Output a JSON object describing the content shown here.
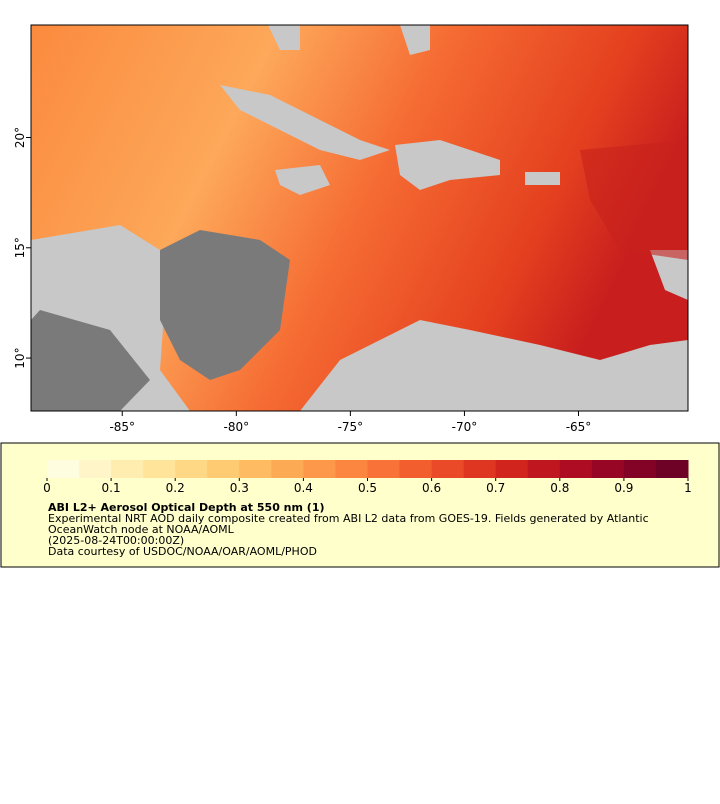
{
  "map": {
    "xlim": [
      -89,
      -60.2
    ],
    "ylim": [
      7.6,
      25.1
    ],
    "xticks": [
      {
        "value": -85,
        "label": "-85°"
      },
      {
        "value": -80,
        "label": "-80°"
      },
      {
        "value": -75,
        "label": "-75°"
      },
      {
        "value": -70,
        "label": "-70°"
      },
      {
        "value": -65,
        "label": "-65°"
      }
    ],
    "yticks": [
      {
        "value": 10,
        "label": "10°"
      },
      {
        "value": 15,
        "label": "15°"
      },
      {
        "value": 20,
        "label": "20°"
      }
    ]
  },
  "colorbar": {
    "range": [
      0,
      1
    ],
    "ticks": [
      0,
      0.1,
      0.2,
      0.3,
      0.4,
      0.5,
      0.6,
      0.7,
      0.8,
      0.9,
      1
    ],
    "colors": [
      "#fffde0",
      "#fff5c8",
      "#ffedb0",
      "#ffe49a",
      "#fed885",
      "#fecb72",
      "#febb62",
      "#fdaa55",
      "#fd984a",
      "#fc8540",
      "#f97237",
      "#f35e2e",
      "#ea4a27",
      "#de3621",
      "#d0241d",
      "#c0161f",
      "#ad0c22",
      "#980625",
      "#820326",
      "#6e0126"
    ]
  },
  "legend": {
    "title": "ABI L2+ Aerosol Optical Depth at 550 nm (1)",
    "lines": [
      "Experimental NRT AOD daily composite created from ABI L2 data from GOES-19. Fields generated by Atlantic",
      "OceanWatch node at NOAA/AOML",
      "(2025-08-24T00:00:00Z)",
      "Data courtesy of USDOC/NOAA/OAR/AOML/PHOD"
    ]
  }
}
